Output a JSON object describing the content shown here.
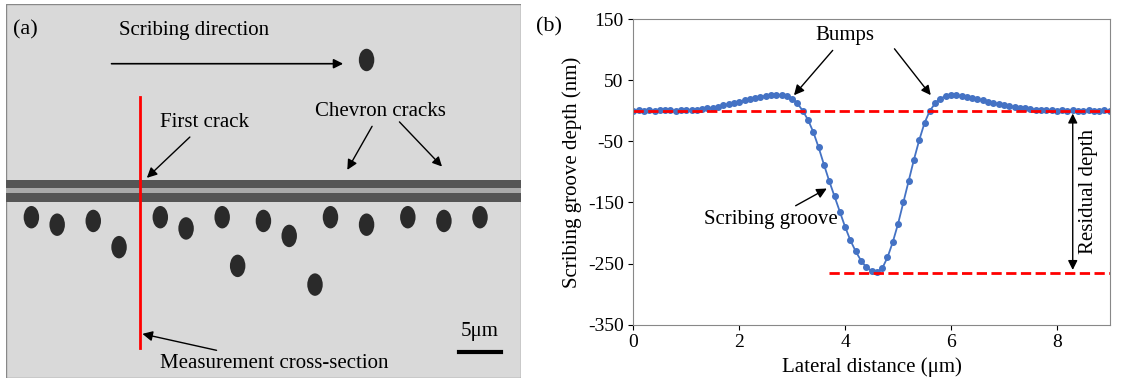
{
  "image_panel": {
    "label": "(a)",
    "direction_text": "Scribing direction",
    "first_crack": "First crack",
    "chevron_cracks": "Chevron cracks",
    "cross_section": "Measurement cross-section",
    "scale_bar": "5μm"
  },
  "chart_data": {
    "type": "line",
    "panel_label": "(b)",
    "x_label": "Lateral distance (μm)",
    "y_label": "Scribing groove depth (nm)",
    "x": [
      0.0,
      0.1,
      0.2,
      0.3,
      0.4,
      0.5,
      0.6,
      0.7,
      0.8,
      0.9,
      1.0,
      1.1,
      1.2,
      1.3,
      1.4,
      1.5,
      1.6,
      1.7,
      1.8,
      1.9,
      2.0,
      2.1,
      2.2,
      2.3,
      2.4,
      2.5,
      2.6,
      2.7,
      2.8,
      2.9,
      3.0,
      3.1,
      3.2,
      3.3,
      3.4,
      3.5,
      3.6,
      3.7,
      3.8,
      3.9,
      4.0,
      4.1,
      4.2,
      4.3,
      4.4,
      4.5,
      4.6,
      4.7,
      4.8,
      4.9,
      5.0,
      5.1,
      5.2,
      5.3,
      5.4,
      5.5,
      5.6,
      5.7,
      5.8,
      5.9,
      6.0,
      6.1,
      6.2,
      6.3,
      6.4,
      6.5,
      6.6,
      6.7,
      6.8,
      6.9,
      7.0,
      7.1,
      7.2,
      7.3,
      7.4,
      7.5,
      7.6,
      7.7,
      7.8,
      7.9,
      8.0,
      8.1,
      8.2,
      8.3,
      8.4,
      8.5,
      8.6,
      8.7,
      8.8,
      8.9,
      9.0
    ],
    "series": [
      {
        "name": "Scribing groove",
        "color": "#4472c4",
        "marker": "o",
        "line_style": "solid",
        "values": [
          0,
          1,
          0,
          1,
          0,
          1,
          2,
          1,
          0,
          1,
          2,
          1,
          2,
          3,
          4,
          5,
          7,
          9,
          11,
          13,
          15,
          17,
          19,
          21,
          23,
          24,
          25,
          26,
          26,
          24,
          20,
          12,
          0,
          -15,
          -35,
          -60,
          -88,
          -115,
          -140,
          -165,
          -190,
          -212,
          -230,
          -245,
          -256,
          -262,
          -264,
          -258,
          -240,
          -215,
          -185,
          -150,
          -115,
          -80,
          -48,
          -20,
          0,
          12,
          20,
          24,
          25,
          25,
          24,
          23,
          21,
          19,
          17,
          15,
          13,
          11,
          9,
          8,
          6,
          5,
          4,
          3,
          2,
          2,
          1,
          1,
          0,
          1,
          0,
          1,
          0,
          0,
          1,
          0,
          0,
          1,
          0
        ]
      }
    ],
    "xlim": [
      0,
      9
    ],
    "xticks": [
      0,
      2,
      4,
      6,
      8
    ],
    "ylim": [
      -350,
      150
    ],
    "yticks": [
      -350,
      -250,
      -150,
      -50,
      50,
      150
    ],
    "grid": false,
    "reference_lines": [
      {
        "y": 0,
        "x": [
          0,
          9
        ]
      },
      {
        "y": -265,
        "x": [
          3.7,
          9
        ]
      }
    ],
    "annotations": {
      "bumps": "Bumps",
      "groove": "Scribing groove",
      "residual": "Residual depth"
    }
  }
}
